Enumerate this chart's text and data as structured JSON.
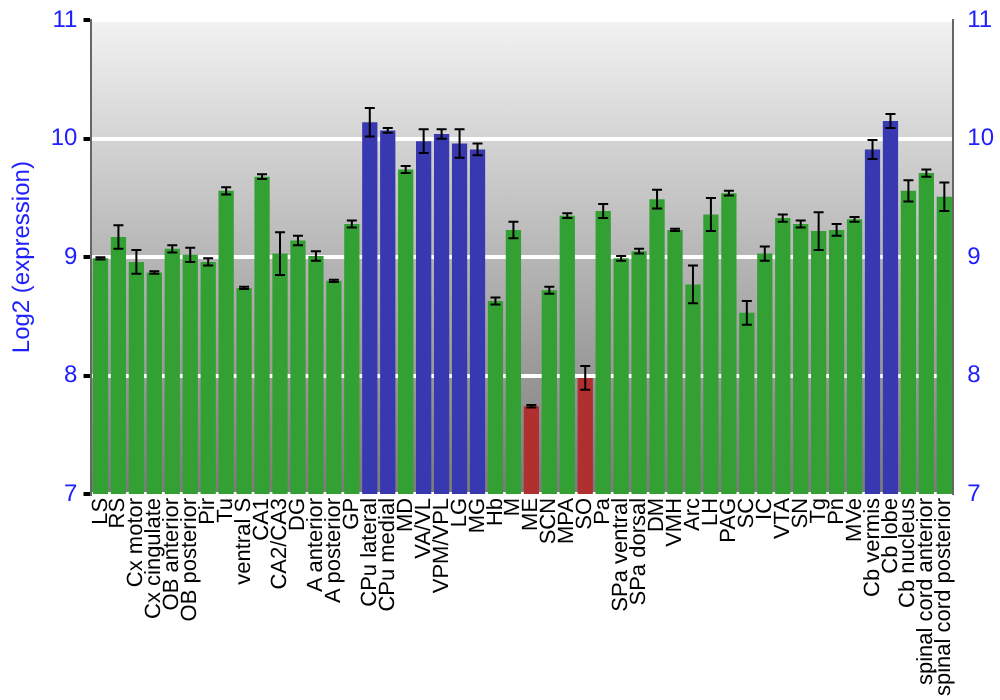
{
  "chart_data": {
    "type": "bar",
    "ylabel": "Log2 (expression)",
    "categories": [
      "LS",
      "RS",
      "Cx motor",
      "Cx cingulate",
      "OB anterior",
      "OB posterior",
      "Pir",
      "Tu",
      "ventral S",
      "CA1",
      "CA2/CA3",
      "DG",
      "A anterior",
      "A posterior",
      "GP",
      "CPu lateral",
      "CPu medial",
      "MD",
      "VA/VL",
      "VPM/VPL",
      "LG",
      "MG",
      "Hb",
      "M",
      "ME",
      "SCN",
      "MPA",
      "SO",
      "Pa",
      "SPa ventral",
      "SPa dorsal",
      "DM",
      "VMH",
      "Arc",
      "LH",
      "PAG",
      "SC",
      "IC",
      "VTA",
      "SN",
      "Tg",
      "Pn",
      "MVe",
      "Cb vermis",
      "Cb lobe",
      "Cb nucleus",
      "spinal cord anterior",
      "spinal cord posterior"
    ],
    "values": [
      8.99,
      9.17,
      8.96,
      8.87,
      9.07,
      9.02,
      8.96,
      9.56,
      8.74,
      9.68,
      9.03,
      9.14,
      9.01,
      8.8,
      9.28,
      10.14,
      10.07,
      9.74,
      9.98,
      10.04,
      9.96,
      9.91,
      8.63,
      9.23,
      7.74,
      8.72,
      9.35,
      7.98,
      9.39,
      8.99,
      9.05,
      9.49,
      9.23,
      8.77,
      9.36,
      9.54,
      8.53,
      9.03,
      9.33,
      9.28,
      9.22,
      9.23,
      9.32,
      9.91,
      10.15,
      9.56,
      9.71,
      9.51
    ],
    "errors": [
      0.01,
      0.1,
      0.1,
      0.01,
      0.03,
      0.06,
      0.03,
      0.03,
      0.01,
      0.02,
      0.18,
      0.04,
      0.04,
      0.01,
      0.03,
      0.12,
      0.02,
      0.03,
      0.1,
      0.04,
      0.12,
      0.05,
      0.03,
      0.07,
      0.01,
      0.03,
      0.02,
      0.1,
      0.06,
      0.02,
      0.02,
      0.08,
      0.01,
      0.16,
      0.14,
      0.02,
      0.1,
      0.06,
      0.03,
      0.03,
      0.16,
      0.05,
      0.02,
      0.08,
      0.06,
      0.09,
      0.03,
      0.12
    ],
    "colors": [
      "#33a033",
      "#33a033",
      "#33a033",
      "#33a033",
      "#33a033",
      "#33a033",
      "#33a033",
      "#33a033",
      "#33a033",
      "#33a033",
      "#33a033",
      "#33a033",
      "#33a033",
      "#33a033",
      "#33a033",
      "#3838b0",
      "#3838b0",
      "#33a033",
      "#3838b0",
      "#3838b0",
      "#3838b0",
      "#3838b0",
      "#33a033",
      "#33a033",
      "#b03030",
      "#33a033",
      "#33a033",
      "#b03030",
      "#33a033",
      "#33a033",
      "#33a033",
      "#33a033",
      "#33a033",
      "#33a033",
      "#33a033",
      "#33a033",
      "#33a033",
      "#33a033",
      "#33a033",
      "#33a033",
      "#33a033",
      "#33a033",
      "#33a033",
      "#3838b0",
      "#3838b0",
      "#33a033",
      "#33a033",
      "#33a033"
    ],
    "ylim": [
      7,
      11
    ],
    "yticks": [
      7,
      8,
      9,
      10,
      11
    ],
    "y2lim": [
      7,
      11
    ],
    "y2ticks": [
      7,
      8,
      9,
      10,
      11
    ],
    "grid": "y"
  }
}
